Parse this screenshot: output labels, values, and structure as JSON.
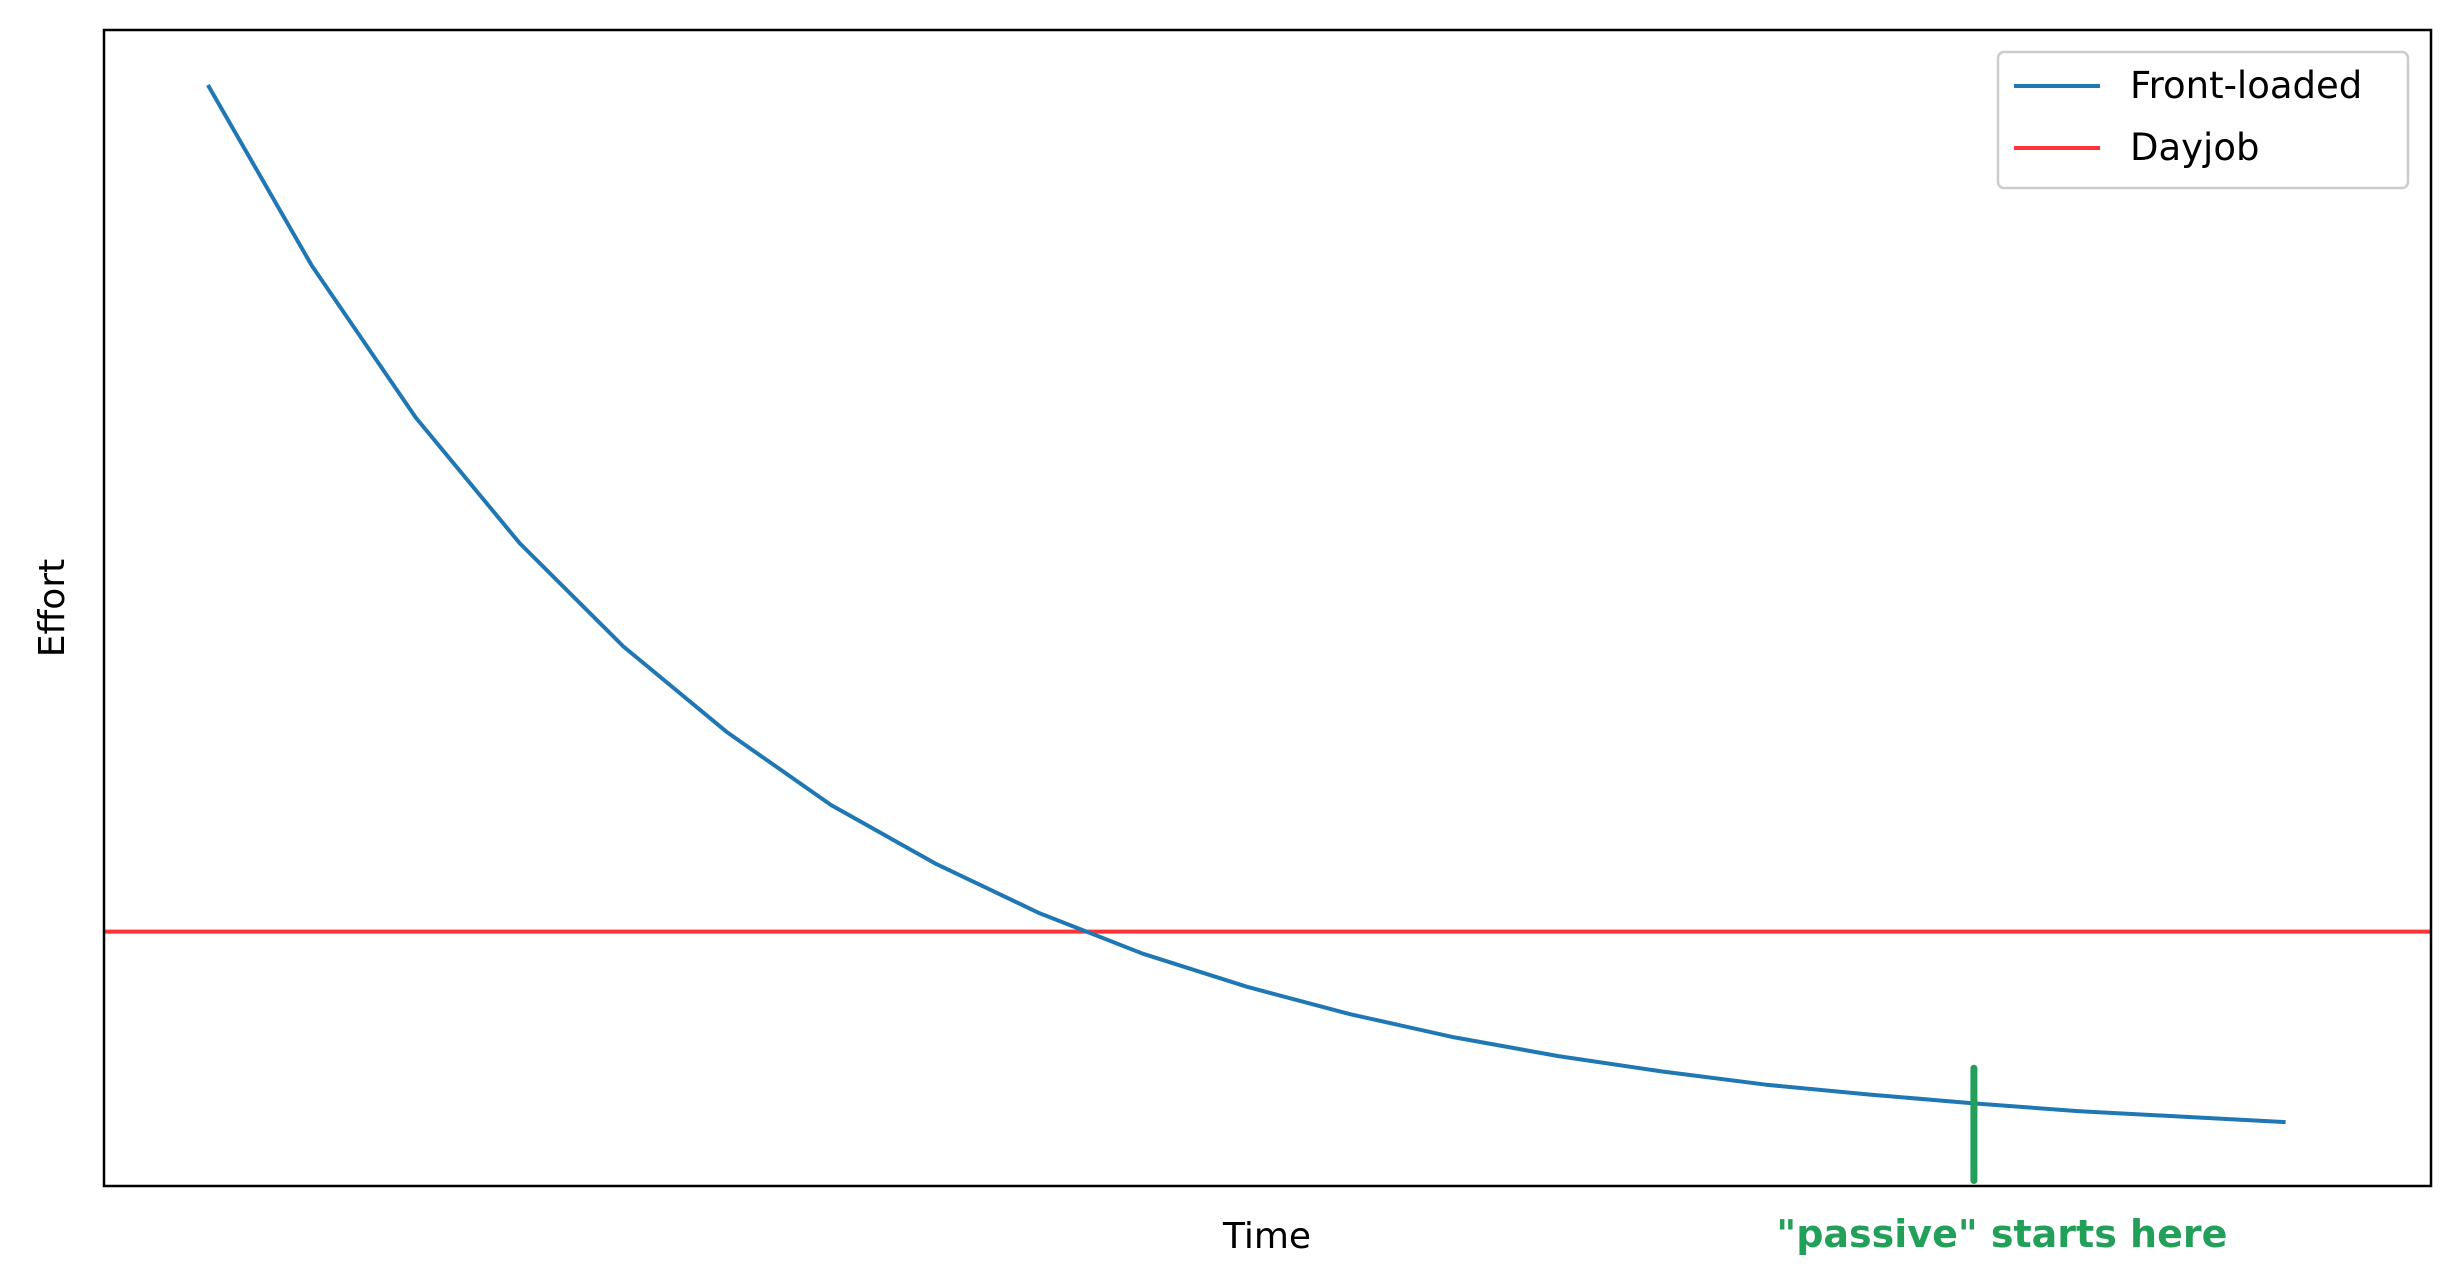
{
  "chart_data": {
    "type": "line",
    "title": "",
    "xlabel": "Time",
    "ylabel": "Effort",
    "xlim": [
      -0.5,
      10.7
    ],
    "ylim": [
      0.0,
      1.05
    ],
    "grid": false,
    "legend_position": "top-right",
    "series": [
      {
        "name": "Front-loaded",
        "color": "#1f77b4",
        "x": [
          0.0,
          0.5,
          1.0,
          1.5,
          2.0,
          2.5,
          3.0,
          3.5,
          4.0,
          4.5,
          5.0,
          5.5,
          6.0,
          6.5,
          7.0,
          7.5,
          8.0,
          8.5,
          9.0,
          9.5,
          10.0
        ],
        "y": [
          1.0,
          0.836,
          0.698,
          0.584,
          0.49,
          0.412,
          0.346,
          0.293,
          0.248,
          0.211,
          0.181,
          0.156,
          0.135,
          0.118,
          0.104,
          0.092,
          0.083,
          0.075,
          0.068,
          0.063,
          0.058
        ]
      },
      {
        "name": "Dayjob",
        "color": "#ff3333",
        "hline": 0.231
      }
    ],
    "annotations": [
      {
        "text": "\"passive\" starts here",
        "x": 8.5,
        "color": "#22a05a",
        "marker_y_range": [
          0.005,
          0.107
        ]
      }
    ]
  }
}
